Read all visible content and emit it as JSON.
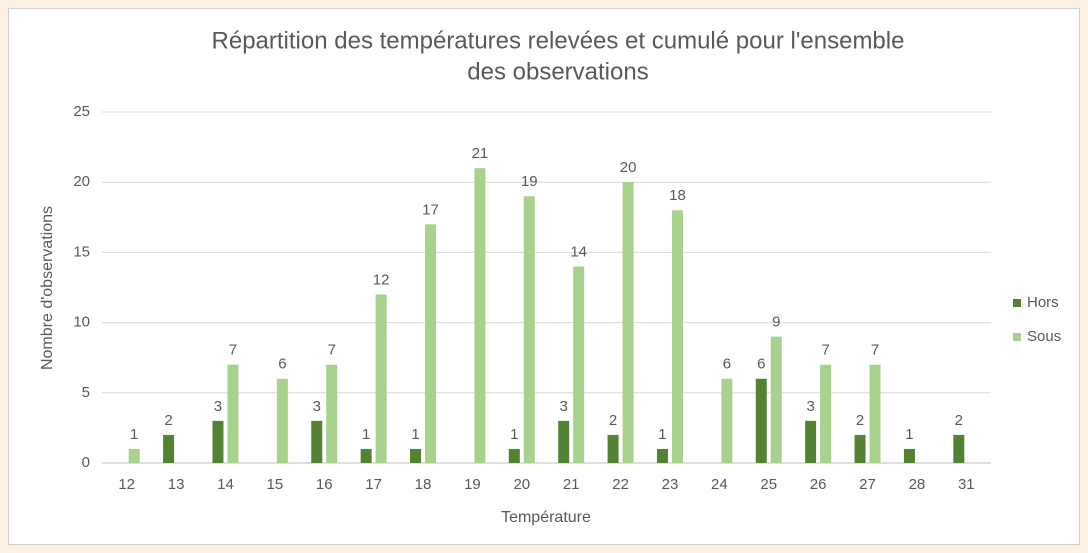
{
  "chart_data": {
    "type": "bar",
    "title": "Répartition des températures relevées et cumulé pour l'ensemble des observations",
    "title_lines": [
      "Répartition des températures relevées et cumulé pour l'ensemble",
      "des observations"
    ],
    "x_label": "Température",
    "y_label": "Nombre d'observations",
    "categories": [
      "12",
      "13",
      "14",
      "15",
      "16",
      "17",
      "18",
      "19",
      "20",
      "21",
      "22",
      "23",
      "24",
      "25",
      "26",
      "27",
      "28",
      "31"
    ],
    "series": [
      {
        "name": "Hors",
        "color": "#548235",
        "values": [
          null,
          2,
          3,
          null,
          3,
          1,
          1,
          null,
          1,
          3,
          2,
          1,
          null,
          6,
          3,
          2,
          1,
          2
        ]
      },
      {
        "name": "Sous",
        "color": "#a9d18e",
        "values": [
          1,
          null,
          7,
          6,
          7,
          12,
          17,
          21,
          19,
          14,
          20,
          18,
          6,
          9,
          7,
          7,
          null,
          null
        ]
      }
    ],
    "ylim": [
      0,
      25
    ],
    "yticks": [
      0,
      5,
      10,
      15,
      20,
      25
    ],
    "grid": true,
    "legend": "right"
  }
}
